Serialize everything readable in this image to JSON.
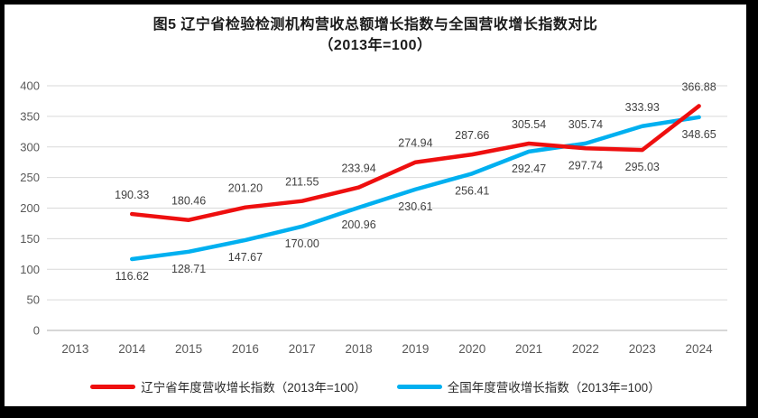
{
  "chart_data": {
    "type": "line",
    "title": "图5 辽宁省检验检测机构营收总额增长指数与全国营收增长指数对比（2013年=100）",
    "title_lines": [
      "图5  辽宁省检验检测机构营收总额增长指数与全国营收增长指数对比",
      "（2013年=100）"
    ],
    "categories": [
      "2013",
      "2014",
      "2015",
      "2016",
      "2017",
      "2018",
      "2019",
      "2020",
      "2021",
      "2022",
      "2023",
      "2024"
    ],
    "series": [
      {
        "id": "liaoning",
        "name": "辽宁省年度营收增长指数（2013年=100）",
        "color": "#ee0f0f",
        "values": [
          null,
          190.33,
          180.46,
          201.2,
          211.55,
          233.94,
          274.94,
          287.66,
          305.54,
          297.74,
          295.03,
          366.88
        ],
        "label_positions": [
          null,
          "above",
          "above",
          "above",
          "above",
          "above",
          "above",
          "above",
          "above",
          "below",
          "below",
          "above"
        ]
      },
      {
        "id": "national",
        "name": "全国年度营收增长指数（2013年=100）",
        "color": "#00b0f0",
        "values": [
          null,
          116.62,
          128.71,
          147.67,
          170.0,
          200.96,
          230.61,
          256.41,
          292.47,
          305.74,
          333.93,
          348.65
        ],
        "label_positions": [
          null,
          "below",
          "below",
          "below",
          "below",
          "below",
          "below",
          "below",
          "below",
          "above",
          "above",
          "below"
        ]
      }
    ],
    "ylim": [
      0,
      400
    ],
    "ytick_step": 50,
    "value_decimals": 2,
    "grid": true,
    "legend_position": "bottom",
    "style": {
      "gridline_color": "#d9d9d9",
      "axis_line_color": "#bfbfbf",
      "axis_label_color": "#595959",
      "data_label_color": "#404040",
      "frame_border_color": "#000000",
      "background_color": "#ffffff"
    }
  }
}
